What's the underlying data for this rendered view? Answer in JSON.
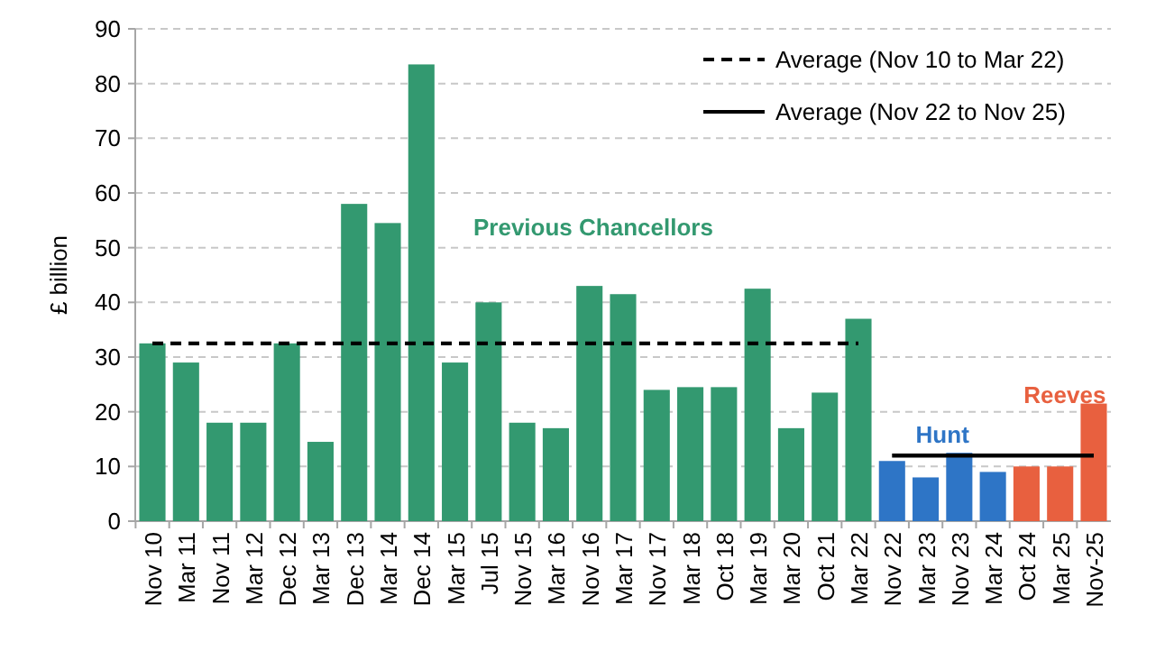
{
  "chart_data": {
    "type": "bar",
    "ylabel": "£ billion",
    "categories": [
      "Nov 10",
      "Mar 11",
      "Nov 11",
      "Mar 12",
      "Dec 12",
      "Mar 13",
      "Dec 13",
      "Mar 14",
      "Dec 14",
      "Mar 15",
      "Jul 15",
      "Nov 15",
      "Mar 16",
      "Nov 16",
      "Mar 17",
      "Nov 17",
      "Mar 18",
      "Oct 18",
      "Mar 19",
      "Mar 20",
      "Oct 21",
      "Mar 22",
      "Nov 22",
      "Mar 23",
      "Nov 23",
      "Mar 24",
      "Oct 24",
      "Mar 25",
      "Nov-25"
    ],
    "series": [
      {
        "values": [
          32.5,
          29,
          18,
          18,
          32.5,
          14.5,
          58,
          54.5,
          83.5,
          29,
          40,
          18,
          17,
          43,
          41.5,
          24,
          24.5,
          24.5,
          42.5,
          17,
          23.5,
          37,
          11,
          8,
          12.5,
          9,
          10,
          10,
          21.5
        ],
        "colors": [
          "#339970",
          "#339970",
          "#339970",
          "#339970",
          "#339970",
          "#339970",
          "#339970",
          "#339970",
          "#339970",
          "#339970",
          "#339970",
          "#339970",
          "#339970",
          "#339970",
          "#339970",
          "#339970",
          "#339970",
          "#339970",
          "#339970",
          "#339970",
          "#339970",
          "#339970",
          "#2e75c6",
          "#2e75c6",
          "#2e75c6",
          "#2e75c6",
          "#e8603f",
          "#e8603f",
          "#e8603f"
        ]
      },
      {
        "type": "line",
        "name": "Average (Nov 10 to Mar 22)",
        "color": "#000000",
        "line_style": "dashed",
        "values": [
          32.5,
          32.5,
          32.5,
          32.5,
          32.5,
          32.5,
          32.5,
          32.5,
          32.5,
          32.5,
          32.5,
          32.5,
          32.5,
          32.5,
          32.5,
          32.5,
          32.5,
          32.5,
          32.5,
          32.5,
          32.5,
          32.5,
          null,
          null,
          null,
          null,
          null,
          null,
          null
        ]
      },
      {
        "type": "line",
        "name": "Average (Nov 22 to Nov 25)",
        "color": "#000000",
        "line_style": "solid",
        "values": [
          null,
          null,
          null,
          null,
          null,
          null,
          null,
          null,
          null,
          null,
          null,
          null,
          null,
          null,
          null,
          null,
          null,
          null,
          null,
          null,
          null,
          null,
          12,
          12,
          12,
          12,
          12,
          12,
          12
        ]
      }
    ],
    "annotations": [
      "Previous Chancellors",
      "Hunt",
      "Reeves"
    ],
    "ylim": [
      0,
      90
    ],
    "yticks": [
      0,
      10,
      20,
      30,
      40,
      50,
      60,
      70,
      80,
      90
    ],
    "grid": "y",
    "legend": "top right",
    "marker": "none"
  }
}
